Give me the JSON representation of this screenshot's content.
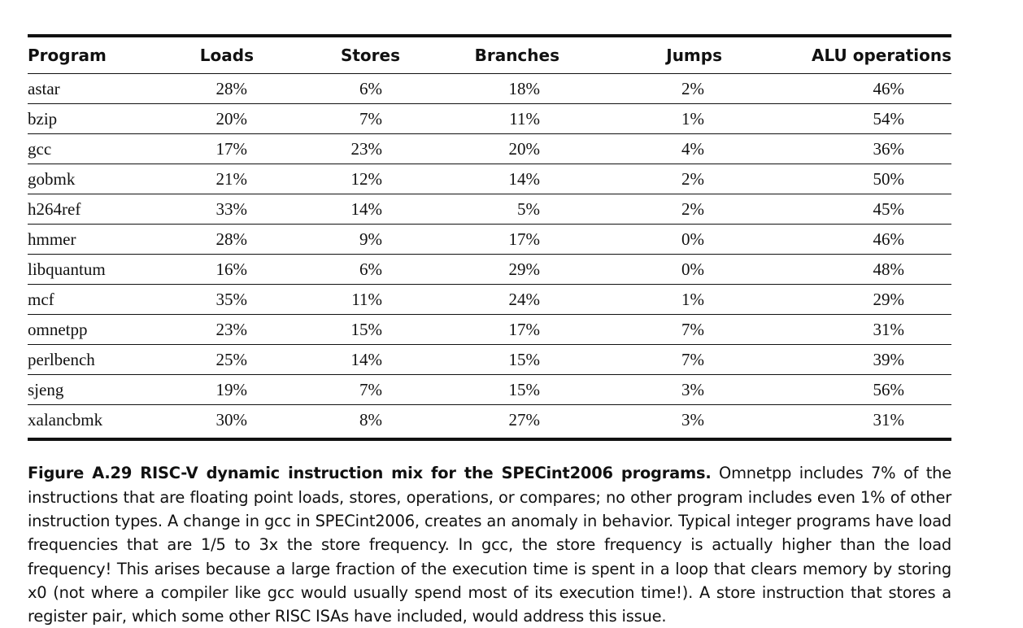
{
  "table": {
    "headers": [
      "Program",
      "Loads",
      "Stores",
      "Branches",
      "Jumps",
      "ALU operations"
    ],
    "rows": [
      [
        "astar",
        "28%",
        "6%",
        "18%",
        "2%",
        "46%"
      ],
      [
        "bzip",
        "20%",
        "7%",
        "11%",
        "1%",
        "54%"
      ],
      [
        "gcc",
        "17%",
        "23%",
        "20%",
        "4%",
        "36%"
      ],
      [
        "gobmk",
        "21%",
        "12%",
        "14%",
        "2%",
        "50%"
      ],
      [
        "h264ref",
        "33%",
        "14%",
        "5%",
        "2%",
        "45%"
      ],
      [
        "hmmer",
        "28%",
        "9%",
        "17%",
        "0%",
        "46%"
      ],
      [
        "libquantum",
        "16%",
        "6%",
        "29%",
        "0%",
        "48%"
      ],
      [
        "mcf",
        "35%",
        "11%",
        "24%",
        "1%",
        "29%"
      ],
      [
        "omnetpp",
        "23%",
        "15%",
        "17%",
        "7%",
        "31%"
      ],
      [
        "perlbench",
        "25%",
        "14%",
        "15%",
        "7%",
        "39%"
      ],
      [
        "sjeng",
        "19%",
        "7%",
        "15%",
        "3%",
        "56%"
      ],
      [
        "xalancbmk",
        "30%",
        "8%",
        "27%",
        "3%",
        "31%"
      ]
    ]
  },
  "caption": {
    "title": "Figure A.29  RISC-V dynamic instruction mix for the SPECint2006 programs.",
    "body": " Omnetpp includes 7% of the instructions that are floating point loads, stores, operations, or compares; no other program includes even 1% of other instruction types. A change in gcc in SPECint2006, creates an anomaly in behavior. Typical integer programs have load frequencies that are 1/5 to 3x the store frequency. In gcc, the store frequency is actually higher than the load frequency! This arises because a large fraction of the execution time is spent in a loop that clears memory by storing x0 (not where a compiler like gcc would usually spend most of its execution time!). A store instruction that stores a register pair, which some other RISC ISAs have included, would address this issue."
  }
}
